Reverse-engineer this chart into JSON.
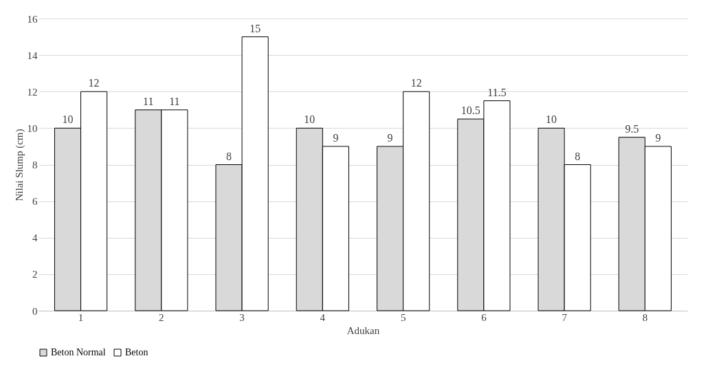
{
  "chart_data": {
    "type": "bar",
    "xlabel": "Adukan",
    "ylabel": "Nilai Slump (cm)",
    "categories": [
      "1",
      "2",
      "3",
      "4",
      "5",
      "6",
      "7",
      "8"
    ],
    "series": [
      {
        "name": "Beton Normal",
        "color": "#d9d9d9",
        "values": [
          10,
          11,
          8,
          10,
          9,
          10.5,
          10,
          9.5
        ]
      },
      {
        "name": "Beton",
        "color": "#ffffff",
        "values": [
          12,
          11,
          15,
          9,
          12,
          11.5,
          8,
          9
        ]
      }
    ],
    "ylim": [
      0,
      16
    ],
    "yticks": [
      0,
      2,
      4,
      6,
      8,
      10,
      12,
      14,
      16
    ],
    "grid": "y",
    "legend": "bottom",
    "data_labels": true
  }
}
